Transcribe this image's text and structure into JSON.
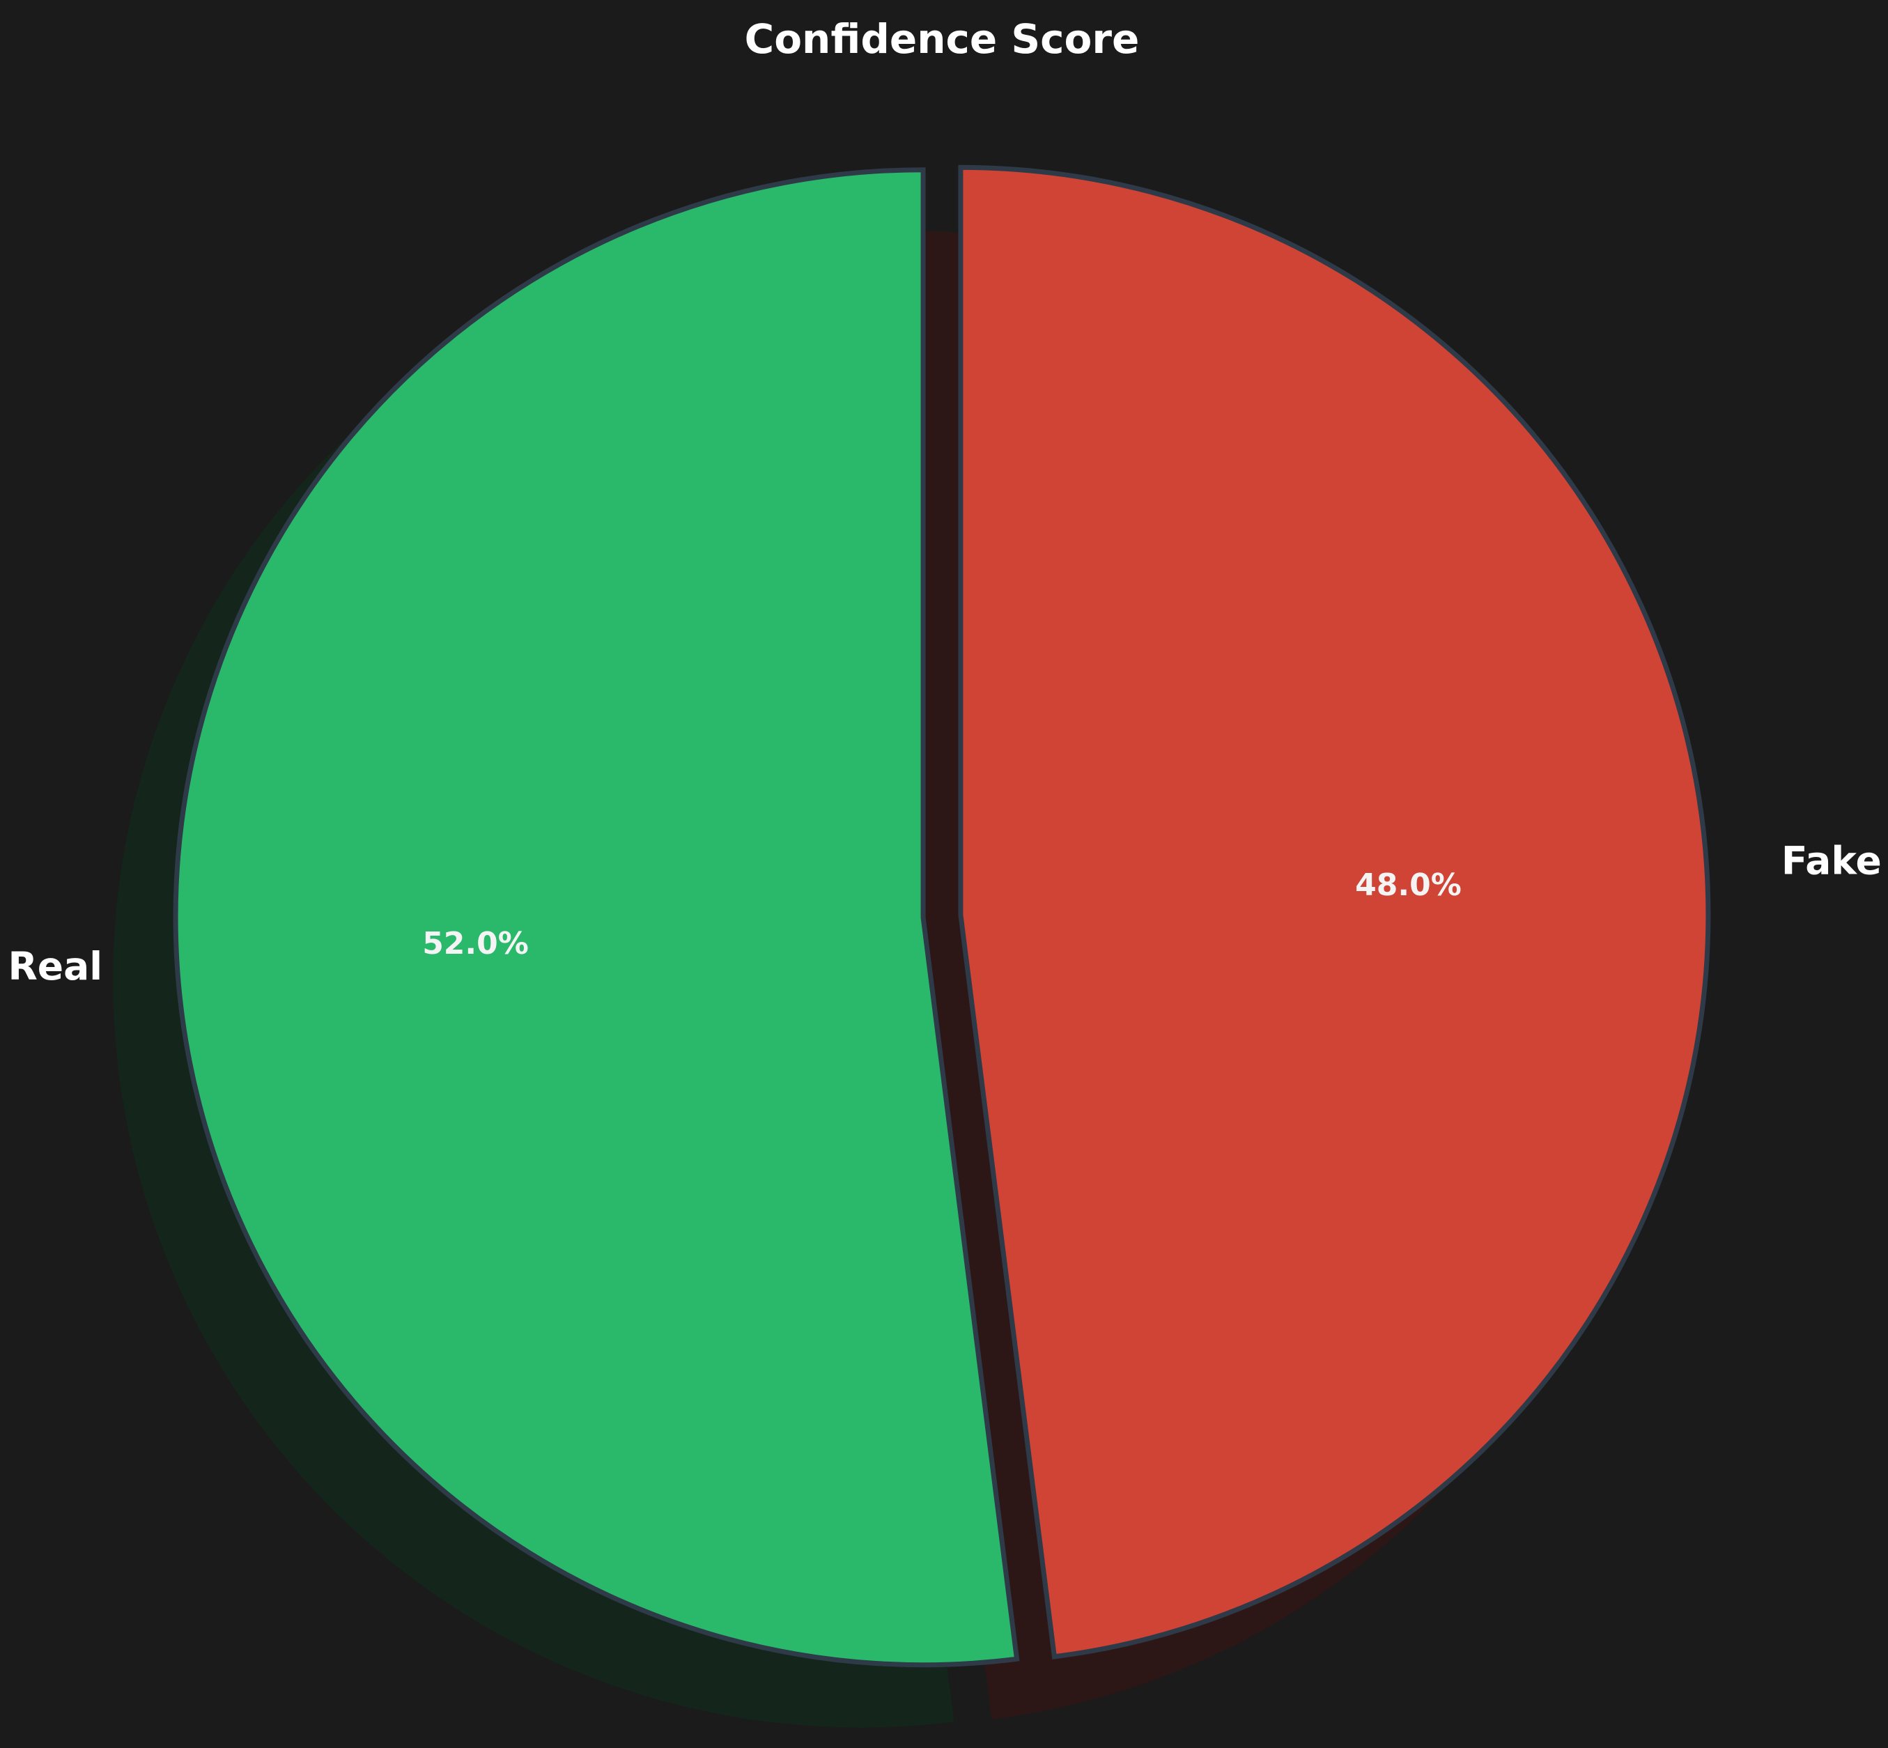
{
  "chart_data": {
    "type": "pie",
    "title": "Confidence Score",
    "slices": [
      {
        "label": "Real",
        "value": 52.0,
        "pct_label": "52.0%",
        "color": "#2ab86a",
        "shadow_color": "#14251b"
      },
      {
        "label": "Fake",
        "value": 48.0,
        "pct_label": "48.0%",
        "color": "#d04436",
        "shadow_color": "#2c1716"
      }
    ],
    "start_angle_deg": 90,
    "direction": "counterclockwise",
    "exploded": [
      "Real",
      "Fake"
    ],
    "shadow": true,
    "edge_color": "#2e3a47",
    "background_color": "#1b1b1b",
    "text_color": "#ffffff",
    "pct_text_color": "#f4f4f4"
  }
}
